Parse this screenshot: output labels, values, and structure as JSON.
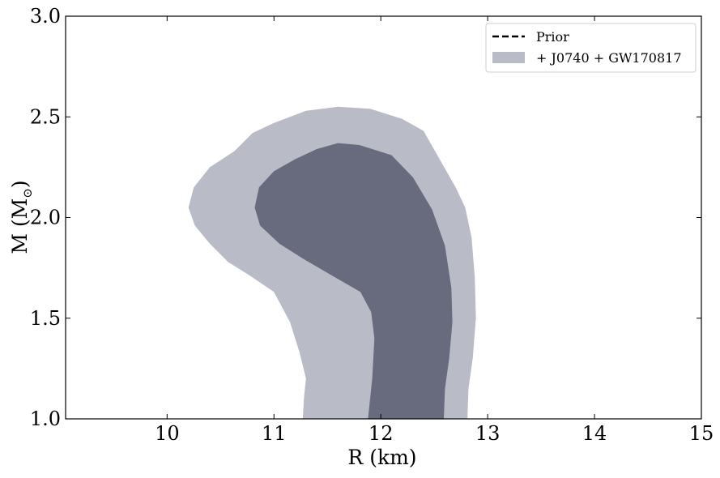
{
  "chart_data": {
    "type": "area",
    "xlabel": "R (km)",
    "ylabel": "M (M",
    "ylabel_subscript": "⊙",
    "ylabel_close": ")",
    "xlim": [
      9.05,
      15.0
    ],
    "ylim": [
      1.0,
      3.0
    ],
    "xticks": [
      10,
      11,
      12,
      13,
      14,
      15
    ],
    "xtick_labels": [
      "10",
      "11",
      "12",
      "13",
      "14",
      "15"
    ],
    "yticks": [
      1.0,
      1.5,
      2.0,
      2.5,
      3.0
    ],
    "ytick_labels": [
      "1.0",
      "1.5",
      "2.0",
      "2.5",
      "3.0"
    ],
    "grid": false,
    "legend_position": "top-right",
    "legend": [
      {
        "label": "Prior",
        "style": "dashed-line",
        "color": "#000000"
      },
      {
        "label": "+ J0740 + GW170817",
        "style": "filled-patch",
        "color": "#b9bbc6"
      }
    ],
    "series": [
      {
        "name": "+ J0740 + GW170817",
        "credible_region": "outer",
        "color": "#b9bbc6",
        "points": [
          [
            11.27,
            1.0
          ],
          [
            11.28,
            1.1
          ],
          [
            11.3,
            1.2
          ],
          [
            11.24,
            1.33
          ],
          [
            11.15,
            1.48
          ],
          [
            11.0,
            1.63
          ],
          [
            10.78,
            1.71
          ],
          [
            10.57,
            1.78
          ],
          [
            10.4,
            1.87
          ],
          [
            10.26,
            1.96
          ],
          [
            10.2,
            2.05
          ],
          [
            10.25,
            2.15
          ],
          [
            10.4,
            2.25
          ],
          [
            10.63,
            2.33
          ],
          [
            10.8,
            2.42
          ],
          [
            11.0,
            2.47
          ],
          [
            11.3,
            2.53
          ],
          [
            11.6,
            2.55
          ],
          [
            11.9,
            2.54
          ],
          [
            12.2,
            2.49
          ],
          [
            12.4,
            2.43
          ],
          [
            12.54,
            2.3
          ],
          [
            12.7,
            2.15
          ],
          [
            12.79,
            2.05
          ],
          [
            12.85,
            1.9
          ],
          [
            12.88,
            1.7
          ],
          [
            12.89,
            1.5
          ],
          [
            12.86,
            1.3
          ],
          [
            12.82,
            1.15
          ],
          [
            12.81,
            1.0
          ]
        ]
      },
      {
        "name": "",
        "credible_region": "inner",
        "color": "#686a7e",
        "points": [
          [
            11.88,
            1.0
          ],
          [
            11.92,
            1.2
          ],
          [
            11.94,
            1.4
          ],
          [
            11.91,
            1.53
          ],
          [
            11.81,
            1.63
          ],
          [
            11.55,
            1.71
          ],
          [
            11.29,
            1.79
          ],
          [
            11.05,
            1.87
          ],
          [
            10.87,
            1.96
          ],
          [
            10.82,
            2.05
          ],
          [
            10.86,
            2.15
          ],
          [
            11.0,
            2.23
          ],
          [
            11.2,
            2.29
          ],
          [
            11.4,
            2.34
          ],
          [
            11.6,
            2.37
          ],
          [
            11.8,
            2.36
          ],
          [
            12.1,
            2.31
          ],
          [
            12.3,
            2.2
          ],
          [
            12.48,
            2.04
          ],
          [
            12.6,
            1.86
          ],
          [
            12.66,
            1.65
          ],
          [
            12.67,
            1.48
          ],
          [
            12.64,
            1.3
          ],
          [
            12.6,
            1.15
          ],
          [
            12.59,
            1.0
          ]
        ]
      }
    ]
  }
}
